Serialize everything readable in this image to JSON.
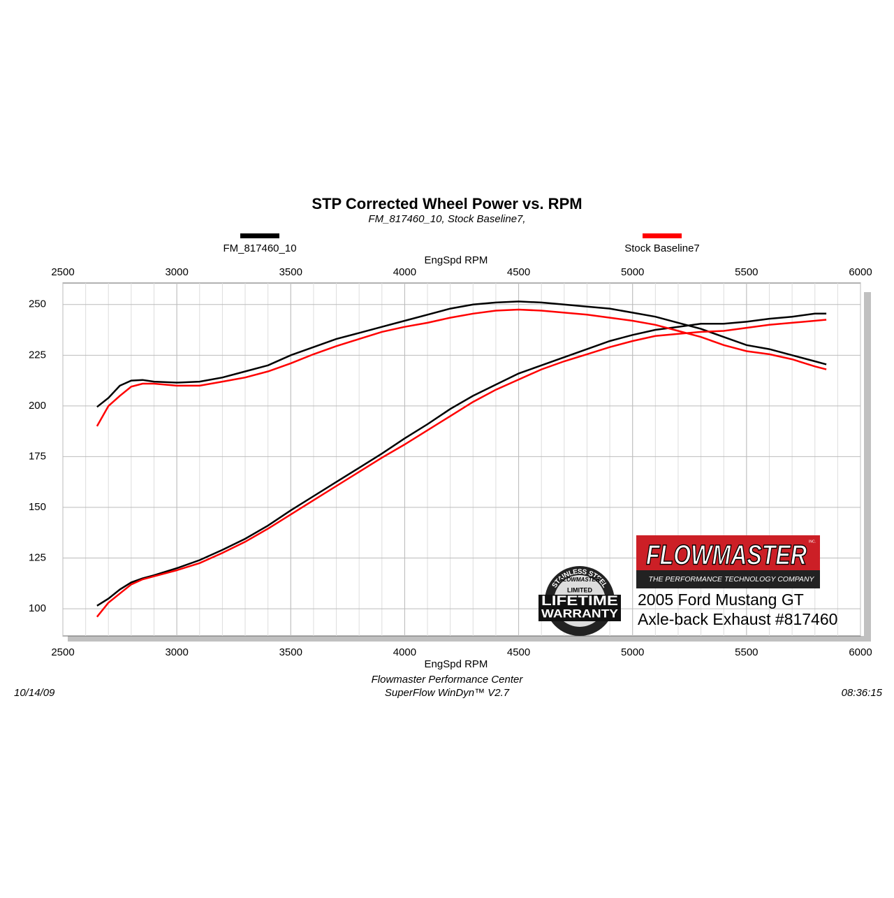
{
  "chart_data": {
    "type": "line",
    "title": "STP Corrected Wheel Power vs. RPM",
    "subtitle": "FM_817460_10, Stock Baseline7,",
    "x_label": "EngSpd  RPM",
    "x": [
      2650,
      2700,
      2750,
      2800,
      2850,
      2900,
      3000,
      3100,
      3200,
      3300,
      3400,
      3500,
      3600,
      3700,
      3800,
      3900,
      4000,
      4100,
      4200,
      4300,
      4400,
      4500,
      4600,
      4700,
      4800,
      4900,
      5000,
      5100,
      5200,
      5300,
      5400,
      5500,
      5600,
      5700,
      5800,
      5850
    ],
    "series": [
      {
        "name": "FM_817460_10",
        "color": "#000000",
        "curves": [
          [
            199.5,
            204,
            210,
            212.5,
            212.8,
            212,
            211.5,
            212,
            214,
            217,
            220,
            225,
            229,
            233,
            236,
            239,
            242,
            245,
            248,
            250,
            251,
            251.5,
            251,
            250,
            249,
            248,
            246,
            244,
            241,
            238,
            234,
            230,
            228,
            225,
            222,
            220.5
          ],
          [
            101.5,
            105,
            109.5,
            113,
            115,
            116.5,
            120,
            124,
            129,
            134.5,
            141,
            148.5,
            155.5,
            162.5,
            169.5,
            176.5,
            184,
            191,
            198.5,
            205,
            210.5,
            216,
            220,
            224,
            228,
            232,
            235,
            237.5,
            239,
            240.5,
            240.5,
            241.5,
            243,
            244,
            245.5,
            245.5
          ]
        ]
      },
      {
        "name": "Stock Baseline7",
        "color": "#ff0000",
        "curves": [
          [
            190,
            200,
            205,
            209.5,
            211,
            211,
            210,
            210,
            212,
            214,
            217,
            221,
            225.5,
            229.5,
            233,
            236.5,
            239,
            241,
            243.5,
            245.5,
            247,
            247.5,
            247,
            246,
            245,
            243.5,
            242,
            240,
            237,
            234,
            230,
            227,
            225.5,
            223,
            219.5,
            218
          ],
          [
            96,
            103,
            107.5,
            112,
            114.5,
            116,
            119,
            122.5,
            127.5,
            133,
            139.5,
            146.5,
            153.5,
            160.5,
            167.5,
            174.5,
            181,
            188,
            195,
            202,
            208,
            213,
            218,
            222,
            225.5,
            229,
            232,
            234.5,
            235.5,
            236.5,
            237,
            238.5,
            240,
            241,
            242,
            242.5
          ]
        ]
      }
    ],
    "xlim": [
      2500,
      6000
    ],
    "xticks": [
      2500,
      3000,
      3500,
      4000,
      4500,
      5000,
      5500,
      6000
    ],
    "x_minor_step": 100,
    "ylim": [
      86.6,
      260.6
    ],
    "yticks": [
      100,
      125,
      150,
      175,
      200,
      225,
      250
    ],
    "grid": true,
    "footer": {
      "center_1": "Flowmaster Performance Center",
      "center_2": "SuperFlow WinDyn™ V2.7",
      "date": "10/14/09",
      "time": "08:36:15"
    },
    "logo": {
      "brand": "FLOWMASTER",
      "inc": "INC.",
      "tagline": "THE PERFORMANCE TECHNOLOGY COMPANY"
    },
    "badge": {
      "arc": "STAINLESS STEEL",
      "brand": "FLOWMASTER",
      "limited": "LIMITED",
      "line1": "LIFETIME",
      "line2": "WARRANTY"
    },
    "caption": [
      "2005 Ford Mustang GT",
      "Axle-back Exhaust #817460"
    ]
  }
}
